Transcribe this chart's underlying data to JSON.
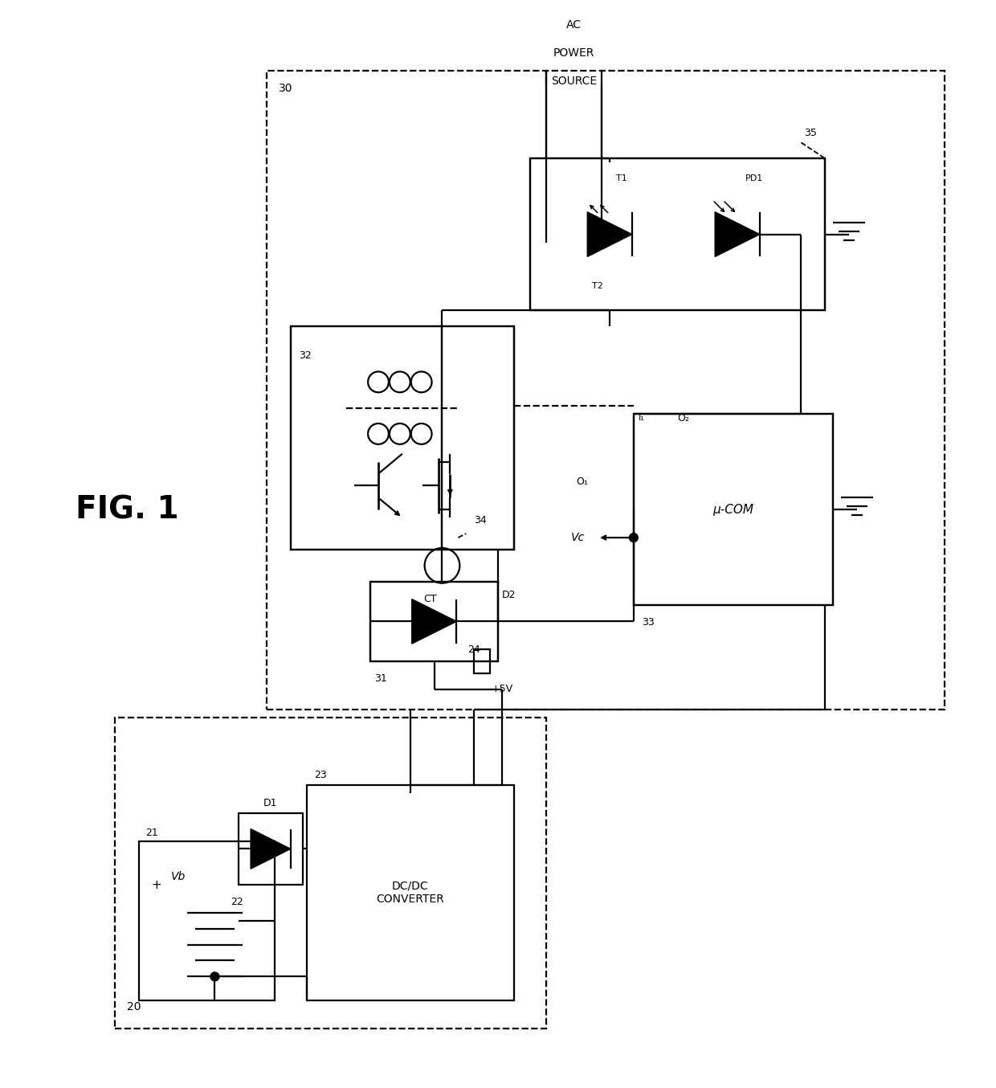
{
  "bg": "#ffffff",
  "lc": "#000000",
  "fig_label": "FIG. 1",
  "labels": {
    "20": "20",
    "21": "21",
    "22": "22",
    "23": "23",
    "24": "24",
    "30": "30",
    "31": "31",
    "32": "32",
    "33": "33",
    "34": "34",
    "35": "35",
    "D1": "D1",
    "D2": "D2",
    "Vb": "Vb",
    "Vc": "Vc",
    "CT": "CT",
    "T1": "T1",
    "T2": "T2",
    "PD1": "PD1",
    "O1": "O₁",
    "O2": "O₂",
    "I1": "I₁",
    "uCOM": "μ-COM",
    "DCDC": "DC/DC\nCONVERTER",
    "AC1": "AC",
    "AC2": "POWER",
    "AC3": "SOURCE",
    "5V": "+5V"
  }
}
